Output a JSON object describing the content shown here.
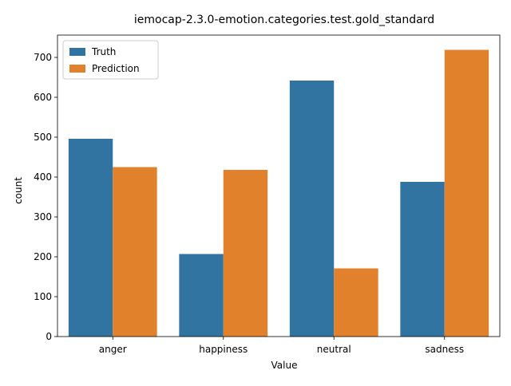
{
  "chart_data": {
    "type": "bar",
    "title": "iemocap-2.3.0-emotion.categories.test.gold_standard",
    "xlabel": "Value",
    "ylabel": "count",
    "categories": [
      "anger",
      "happiness",
      "neutral",
      "sadness"
    ],
    "series": [
      {
        "name": "Truth",
        "values": [
          496,
          207,
          642,
          388
        ],
        "color": "#3274a1"
      },
      {
        "name": "Prediction",
        "values": [
          425,
          418,
          171,
          719
        ],
        "color": "#e1812c"
      }
    ],
    "ylim": [
      0,
      756
    ],
    "yticks": [
      0,
      100,
      200,
      300,
      400,
      500,
      600,
      700
    ],
    "grid": false,
    "legend_position": "top-left"
  }
}
